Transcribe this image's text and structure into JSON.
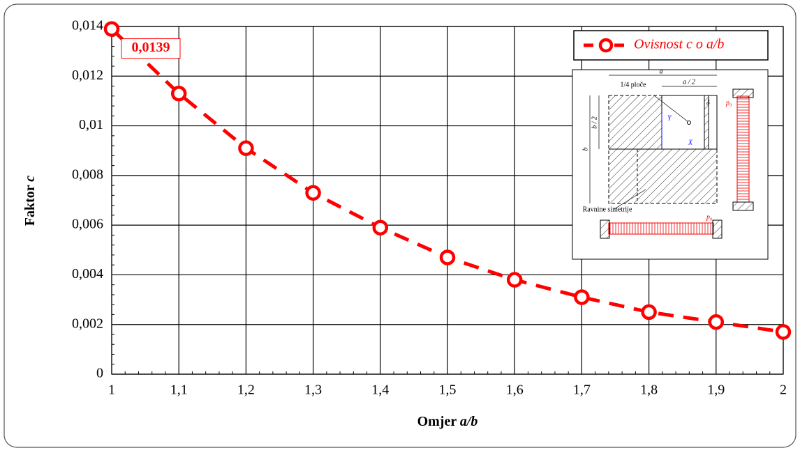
{
  "chart_data": {
    "type": "line",
    "xlabel": {
      "text": "Omjer",
      "var": "a/b"
    },
    "ylabel": {
      "text": "Faktor",
      "var": "c"
    },
    "x": [
      1,
      1.1,
      1.2,
      1.3,
      1.4,
      1.5,
      1.6,
      1.7,
      1.8,
      1.9,
      2
    ],
    "series": [
      {
        "name": "Ovisnost c o a/b",
        "color": "#ff0000",
        "values": [
          0.0139,
          0.0113,
          0.0091,
          0.0073,
          0.0059,
          0.0047,
          0.0038,
          0.0031,
          0.0025,
          0.0021,
          0.0017
        ],
        "value_labels": [
          "0,0139",
          null,
          null,
          null,
          null,
          null,
          null,
          null,
          null,
          null,
          null
        ]
      }
    ],
    "xlim": [
      1,
      2
    ],
    "xticks": [
      1,
      {
        "value": 1.1,
        "label": "1,1"
      },
      {
        "value": 1.2,
        "label": "1,2"
      },
      {
        "value": 1.3,
        "label": "1,3"
      },
      {
        "value": 1.4,
        "label": "1,4"
      },
      {
        "value": 1.5,
        "label": "1,5"
      },
      {
        "value": 1.6,
        "label": "1,6"
      },
      {
        "value": 1.7,
        "label": "1,7"
      },
      {
        "value": 1.8,
        "label": "1,8"
      },
      {
        "value": 1.9,
        "label": "1,9"
      },
      2
    ],
    "ylim": [
      0,
      0.014
    ],
    "yticks": [
      0,
      {
        "value": 0.002,
        "label": "0,002"
      },
      {
        "value": 0.004,
        "label": "0,004"
      },
      {
        "value": 0.006,
        "label": "0,006"
      },
      {
        "value": 0.008,
        "label": "0,008"
      },
      {
        "value": 0.01,
        "label": "0,01"
      },
      {
        "value": 0.012,
        "label": "0,012"
      },
      {
        "value": 0.014,
        "label": "0,014"
      }
    ],
    "grid": true,
    "legend": "upper right"
  },
  "inset": {
    "a": "a",
    "a_half": "a / 2",
    "quarter": "1/4 ploče",
    "b_half": "b / 2",
    "b": "b",
    "Y": "Y",
    "X": "X",
    "delta": "δ",
    "p0_right": "p₀",
    "planes": "Ravnine simetrije",
    "p0_bottom": "p₀"
  }
}
